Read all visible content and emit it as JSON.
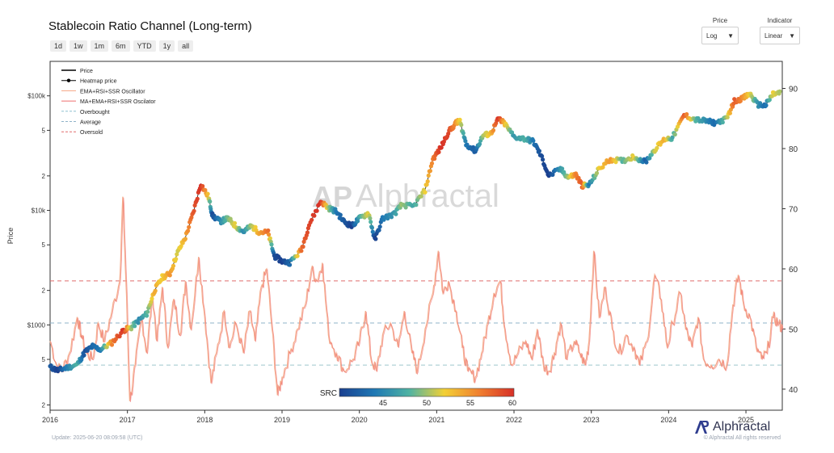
{
  "title": "Stablecoin Ratio Channel (Long-term)",
  "ranges": [
    "1d",
    "1w",
    "1m",
    "6m",
    "YTD",
    "1y",
    "all"
  ],
  "controls": {
    "price": {
      "label": "Price",
      "value": "Log"
    },
    "indicator": {
      "label": "Indicator",
      "value": "Linear"
    }
  },
  "watermark": "Alphractal",
  "footer": {
    "update": "Update: 2025-06-20 08:09:58 (UTC)",
    "copyright": "© Alphractal All rights reserved",
    "brand": "Alphractal"
  },
  "colors": {
    "oscillator": "#f28b6b",
    "overbought_line": "#a9c6d6",
    "average_line": "#8fb3c9",
    "oversold_line": "#e06c6c",
    "watermark": "#d9d9d9"
  },
  "chart_data": {
    "type": "line",
    "ylabel": "Price",
    "y_left_scale": "log",
    "y_left_range": [
      180,
      200000
    ],
    "y_left_ticks": [
      {
        "v": 200,
        "t": "2"
      },
      {
        "v": 500,
        "t": "5"
      },
      {
        "v": 1000,
        "t": "$1000"
      },
      {
        "v": 2000,
        "t": "2"
      },
      {
        "v": 5000,
        "t": "5"
      },
      {
        "v": 10000,
        "t": "$10k"
      },
      {
        "v": 20000,
        "t": "2"
      },
      {
        "v": 50000,
        "t": "5"
      },
      {
        "v": 100000,
        "t": "$100k"
      }
    ],
    "y_right_range": [
      36.5,
      94.5
    ],
    "y_right_ticks": [
      40,
      50,
      60,
      70,
      80,
      90
    ],
    "x_range": [
      2016.0,
      2025.47
    ],
    "x_ticks": [
      "2016",
      "2017",
      "2018",
      "2019",
      "2020",
      "2021",
      "2022",
      "2023",
      "2024",
      "2025"
    ],
    "legend": [
      {
        "name": "Price",
        "style": "line",
        "color": "#000000"
      },
      {
        "name": "Heatmap price",
        "style": "dotline",
        "color": "#000000"
      },
      {
        "name": "EMA+RSI+SSR Oscillator",
        "style": "line",
        "color": "#f4a582"
      },
      {
        "name": "MA+EMA+RSI+SSR Oscilator",
        "style": "line",
        "color": "#ef6f6f"
      },
      {
        "name": "Overbought",
        "style": "dash",
        "color": "#8fc1d0"
      },
      {
        "name": "Average",
        "style": "dash",
        "color": "#8fb3c9"
      },
      {
        "name": "Oversold",
        "style": "dash",
        "color": "#e06c6c"
      }
    ],
    "levels": {
      "overbought": 44,
      "average": 51,
      "oversold": 58
    },
    "colorbar": {
      "label": "SRC",
      "min": 40,
      "max": 60,
      "ticks": [
        45,
        50,
        55,
        60
      ],
      "colors": [
        "#1a3f8f",
        "#1f78b4",
        "#4fb3a3",
        "#f2d035",
        "#f08030",
        "#d73027"
      ]
    },
    "price_series": [
      {
        "x": 2016.0,
        "y": 430,
        "s": 42
      },
      {
        "x": 2016.1,
        "y": 400,
        "s": 40
      },
      {
        "x": 2016.2,
        "y": 420,
        "s": 44
      },
      {
        "x": 2016.35,
        "y": 450,
        "s": 48
      },
      {
        "x": 2016.45,
        "y": 580,
        "s": 41
      },
      {
        "x": 2016.55,
        "y": 650,
        "s": 43
      },
      {
        "x": 2016.65,
        "y": 610,
        "s": 44
      },
      {
        "x": 2016.8,
        "y": 700,
        "s": 56
      },
      {
        "x": 2016.95,
        "y": 900,
        "s": 60
      },
      {
        "x": 2017.05,
        "y": 950,
        "s": 50
      },
      {
        "x": 2017.15,
        "y": 1100,
        "s": 45
      },
      {
        "x": 2017.25,
        "y": 1250,
        "s": 48
      },
      {
        "x": 2017.35,
        "y": 2000,
        "s": 54
      },
      {
        "x": 2017.45,
        "y": 2600,
        "s": 52
      },
      {
        "x": 2017.55,
        "y": 2800,
        "s": 55
      },
      {
        "x": 2017.65,
        "y": 4300,
        "s": 51
      },
      {
        "x": 2017.75,
        "y": 5800,
        "s": 54
      },
      {
        "x": 2017.85,
        "y": 9500,
        "s": 58
      },
      {
        "x": 2017.95,
        "y": 17000,
        "s": 60
      },
      {
        "x": 2018.05,
        "y": 13000,
        "s": 52
      },
      {
        "x": 2018.1,
        "y": 9000,
        "s": 41
      },
      {
        "x": 2018.2,
        "y": 8000,
        "s": 45
      },
      {
        "x": 2018.3,
        "y": 8500,
        "s": 49
      },
      {
        "x": 2018.4,
        "y": 7300,
        "s": 52
      },
      {
        "x": 2018.5,
        "y": 6500,
        "s": 45
      },
      {
        "x": 2018.6,
        "y": 7300,
        "s": 50
      },
      {
        "x": 2018.7,
        "y": 6500,
        "s": 54
      },
      {
        "x": 2018.82,
        "y": 6400,
        "s": 57
      },
      {
        "x": 2018.9,
        "y": 4000,
        "s": 41
      },
      {
        "x": 2019.0,
        "y": 3600,
        "s": 40
      },
      {
        "x": 2019.1,
        "y": 3500,
        "s": 43
      },
      {
        "x": 2019.25,
        "y": 4500,
        "s": 57
      },
      {
        "x": 2019.35,
        "y": 7500,
        "s": 59
      },
      {
        "x": 2019.5,
        "y": 12000,
        "s": 60
      },
      {
        "x": 2019.6,
        "y": 10500,
        "s": 50
      },
      {
        "x": 2019.7,
        "y": 9800,
        "s": 44
      },
      {
        "x": 2019.8,
        "y": 8000,
        "s": 42
      },
      {
        "x": 2019.9,
        "y": 7300,
        "s": 40
      },
      {
        "x": 2020.0,
        "y": 8500,
        "s": 47
      },
      {
        "x": 2020.12,
        "y": 9500,
        "s": 52
      },
      {
        "x": 2020.2,
        "y": 5500,
        "s": 40
      },
      {
        "x": 2020.3,
        "y": 8500,
        "s": 44
      },
      {
        "x": 2020.45,
        "y": 9300,
        "s": 46
      },
      {
        "x": 2020.55,
        "y": 11200,
        "s": 50
      },
      {
        "x": 2020.7,
        "y": 10800,
        "s": 47
      },
      {
        "x": 2020.85,
        "y": 15000,
        "s": 52
      },
      {
        "x": 2020.95,
        "y": 28000,
        "s": 56
      },
      {
        "x": 2021.05,
        "y": 35000,
        "s": 60
      },
      {
        "x": 2021.15,
        "y": 48000,
        "s": 59
      },
      {
        "x": 2021.25,
        "y": 58000,
        "s": 55
      },
      {
        "x": 2021.3,
        "y": 60000,
        "s": 52
      },
      {
        "x": 2021.38,
        "y": 38000,
        "s": 44
      },
      {
        "x": 2021.5,
        "y": 33000,
        "s": 42
      },
      {
        "x": 2021.6,
        "y": 45000,
        "s": 50
      },
      {
        "x": 2021.7,
        "y": 47000,
        "s": 53
      },
      {
        "x": 2021.8,
        "y": 63000,
        "s": 60
      },
      {
        "x": 2021.88,
        "y": 57000,
        "s": 53
      },
      {
        "x": 2022.0,
        "y": 44000,
        "s": 46
      },
      {
        "x": 2022.15,
        "y": 42000,
        "s": 48
      },
      {
        "x": 2022.25,
        "y": 40000,
        "s": 44
      },
      {
        "x": 2022.35,
        "y": 30000,
        "s": 41
      },
      {
        "x": 2022.45,
        "y": 20000,
        "s": 40
      },
      {
        "x": 2022.6,
        "y": 23000,
        "s": 46
      },
      {
        "x": 2022.7,
        "y": 19500,
        "s": 50
      },
      {
        "x": 2022.8,
        "y": 20500,
        "s": 56
      },
      {
        "x": 2022.88,
        "y": 16500,
        "s": 58
      },
      {
        "x": 2022.97,
        "y": 16600,
        "s": 44
      },
      {
        "x": 2023.1,
        "y": 23000,
        "s": 52
      },
      {
        "x": 2023.25,
        "y": 28000,
        "s": 55
      },
      {
        "x": 2023.4,
        "y": 27000,
        "s": 48
      },
      {
        "x": 2023.55,
        "y": 29500,
        "s": 52
      },
      {
        "x": 2023.7,
        "y": 26500,
        "s": 42
      },
      {
        "x": 2023.82,
        "y": 34000,
        "s": 51
      },
      {
        "x": 2023.95,
        "y": 42000,
        "s": 54
      },
      {
        "x": 2024.05,
        "y": 43000,
        "s": 47
      },
      {
        "x": 2024.2,
        "y": 68000,
        "s": 58
      },
      {
        "x": 2024.35,
        "y": 62000,
        "s": 48
      },
      {
        "x": 2024.5,
        "y": 60000,
        "s": 45
      },
      {
        "x": 2024.6,
        "y": 58000,
        "s": 43
      },
      {
        "x": 2024.75,
        "y": 63000,
        "s": 50
      },
      {
        "x": 2024.85,
        "y": 90000,
        "s": 58
      },
      {
        "x": 2024.97,
        "y": 96000,
        "s": 55
      },
      {
        "x": 2025.05,
        "y": 104000,
        "s": 52
      },
      {
        "x": 2025.15,
        "y": 84000,
        "s": 46
      },
      {
        "x": 2025.25,
        "y": 82000,
        "s": 43
      },
      {
        "x": 2025.35,
        "y": 104000,
        "s": 52
      },
      {
        "x": 2025.45,
        "y": 106000,
        "s": 50
      }
    ],
    "oscillator_series": [
      {
        "x": 2016.0,
        "y": 48
      },
      {
        "x": 2016.08,
        "y": 44
      },
      {
        "x": 2016.15,
        "y": 43
      },
      {
        "x": 2016.25,
        "y": 46
      },
      {
        "x": 2016.35,
        "y": 52
      },
      {
        "x": 2016.4,
        "y": 49
      },
      {
        "x": 2016.47,
        "y": 46
      },
      {
        "x": 2016.55,
        "y": 45
      },
      {
        "x": 2016.62,
        "y": 51
      },
      {
        "x": 2016.7,
        "y": 48
      },
      {
        "x": 2016.8,
        "y": 53
      },
      {
        "x": 2016.9,
        "y": 58
      },
      {
        "x": 2016.94,
        "y": 72
      },
      {
        "x": 2016.98,
        "y": 58
      },
      {
        "x": 2017.03,
        "y": 38
      },
      {
        "x": 2017.1,
        "y": 44
      },
      {
        "x": 2017.18,
        "y": 52
      },
      {
        "x": 2017.25,
        "y": 46
      },
      {
        "x": 2017.32,
        "y": 56
      },
      {
        "x": 2017.38,
        "y": 48
      },
      {
        "x": 2017.45,
        "y": 57
      },
      {
        "x": 2017.52,
        "y": 47
      },
      {
        "x": 2017.6,
        "y": 55
      },
      {
        "x": 2017.68,
        "y": 49
      },
      {
        "x": 2017.75,
        "y": 58
      },
      {
        "x": 2017.82,
        "y": 50
      },
      {
        "x": 2017.92,
        "y": 62
      },
      {
        "x": 2018.0,
        "y": 52
      },
      {
        "x": 2018.08,
        "y": 41
      },
      {
        "x": 2018.15,
        "y": 46
      },
      {
        "x": 2018.25,
        "y": 53
      },
      {
        "x": 2018.32,
        "y": 47
      },
      {
        "x": 2018.4,
        "y": 51
      },
      {
        "x": 2018.5,
        "y": 46
      },
      {
        "x": 2018.58,
        "y": 53
      },
      {
        "x": 2018.65,
        "y": 48
      },
      {
        "x": 2018.73,
        "y": 57
      },
      {
        "x": 2018.8,
        "y": 60
      },
      {
        "x": 2018.87,
        "y": 50
      },
      {
        "x": 2018.94,
        "y": 39
      },
      {
        "x": 2019.0,
        "y": 42
      },
      {
        "x": 2019.1,
        "y": 46
      },
      {
        "x": 2019.2,
        "y": 50
      },
      {
        "x": 2019.3,
        "y": 54
      },
      {
        "x": 2019.38,
        "y": 60
      },
      {
        "x": 2019.45,
        "y": 58
      },
      {
        "x": 2019.52,
        "y": 61
      },
      {
        "x": 2019.6,
        "y": 49
      },
      {
        "x": 2019.7,
        "y": 46
      },
      {
        "x": 2019.8,
        "y": 43
      },
      {
        "x": 2019.92,
        "y": 45
      },
      {
        "x": 2020.0,
        "y": 48
      },
      {
        "x": 2020.08,
        "y": 53
      },
      {
        "x": 2020.15,
        "y": 45
      },
      {
        "x": 2020.22,
        "y": 43
      },
      {
        "x": 2020.3,
        "y": 49
      },
      {
        "x": 2020.4,
        "y": 51
      },
      {
        "x": 2020.5,
        "y": 47
      },
      {
        "x": 2020.58,
        "y": 53
      },
      {
        "x": 2020.68,
        "y": 46
      },
      {
        "x": 2020.75,
        "y": 43
      },
      {
        "x": 2020.85,
        "y": 50
      },
      {
        "x": 2020.95,
        "y": 56
      },
      {
        "x": 2021.02,
        "y": 63
      },
      {
        "x": 2021.08,
        "y": 56
      },
      {
        "x": 2021.15,
        "y": 58
      },
      {
        "x": 2021.25,
        "y": 53
      },
      {
        "x": 2021.33,
        "y": 47
      },
      {
        "x": 2021.4,
        "y": 43
      },
      {
        "x": 2021.5,
        "y": 42
      },
      {
        "x": 2021.58,
        "y": 46
      },
      {
        "x": 2021.66,
        "y": 51
      },
      {
        "x": 2021.74,
        "y": 56
      },
      {
        "x": 2021.82,
        "y": 58
      },
      {
        "x": 2021.88,
        "y": 50
      },
      {
        "x": 2021.97,
        "y": 44
      },
      {
        "x": 2022.05,
        "y": 46
      },
      {
        "x": 2022.15,
        "y": 48
      },
      {
        "x": 2022.23,
        "y": 45
      },
      {
        "x": 2022.3,
        "y": 50
      },
      {
        "x": 2022.38,
        "y": 44
      },
      {
        "x": 2022.45,
        "y": 43
      },
      {
        "x": 2022.52,
        "y": 46
      },
      {
        "x": 2022.6,
        "y": 51
      },
      {
        "x": 2022.68,
        "y": 45
      },
      {
        "x": 2022.78,
        "y": 48
      },
      {
        "x": 2022.85,
        "y": 46
      },
      {
        "x": 2022.92,
        "y": 44
      },
      {
        "x": 2022.97,
        "y": 48
      },
      {
        "x": 2023.03,
        "y": 63
      },
      {
        "x": 2023.1,
        "y": 52
      },
      {
        "x": 2023.18,
        "y": 57
      },
      {
        "x": 2023.27,
        "y": 50
      },
      {
        "x": 2023.35,
        "y": 46
      },
      {
        "x": 2023.45,
        "y": 49
      },
      {
        "x": 2023.55,
        "y": 47
      },
      {
        "x": 2023.62,
        "y": 44
      },
      {
        "x": 2023.72,
        "y": 48
      },
      {
        "x": 2023.82,
        "y": 59
      },
      {
        "x": 2023.9,
        "y": 55
      },
      {
        "x": 2023.98,
        "y": 47
      },
      {
        "x": 2024.05,
        "y": 51
      },
      {
        "x": 2024.15,
        "y": 56
      },
      {
        "x": 2024.22,
        "y": 50
      },
      {
        "x": 2024.3,
        "y": 47
      },
      {
        "x": 2024.38,
        "y": 52
      },
      {
        "x": 2024.45,
        "y": 45
      },
      {
        "x": 2024.55,
        "y": 44
      },
      {
        "x": 2024.65,
        "y": 45
      },
      {
        "x": 2024.75,
        "y": 44
      },
      {
        "x": 2024.83,
        "y": 54
      },
      {
        "x": 2024.9,
        "y": 59
      },
      {
        "x": 2024.97,
        "y": 54
      },
      {
        "x": 2025.05,
        "y": 52
      },
      {
        "x": 2025.13,
        "y": 47
      },
      {
        "x": 2025.2,
        "y": 45
      },
      {
        "x": 2025.27,
        "y": 46
      },
      {
        "x": 2025.35,
        "y": 52
      },
      {
        "x": 2025.42,
        "y": 51
      },
      {
        "x": 2025.47,
        "y": 50
      }
    ]
  }
}
